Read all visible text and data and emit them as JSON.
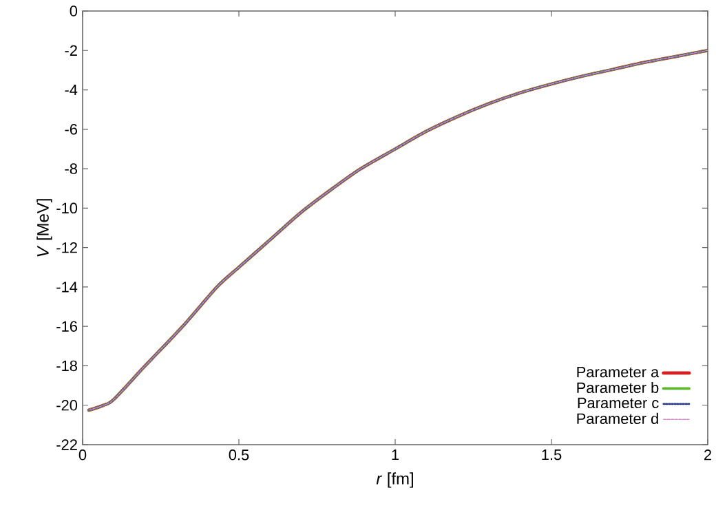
{
  "chart_data": {
    "type": "line",
    "xlabel": "*r* [fm]",
    "ylabel": "*V* [MeV]",
    "x": [
      0.02,
      0.067,
      0.1,
      0.2,
      0.32,
      0.43,
      0.5,
      0.6,
      0.7,
      0.8,
      0.89,
      1.0,
      1.1,
      1.2,
      1.3,
      1.4,
      1.5,
      1.6,
      1.7,
      1.8,
      1.9,
      2.0
    ],
    "series": [
      {
        "name": "Parameter a",
        "color": "#d42020",
        "line_style": "solid",
        "values": [
          -20.25,
          -20.0,
          -19.7,
          -18.0,
          -16.0,
          -14.0,
          -13.0,
          -11.6,
          -10.2,
          -9.0,
          -8.0,
          -7.0,
          -6.1,
          -5.35,
          -4.7,
          -4.15,
          -3.7,
          -3.3,
          -2.95,
          -2.6,
          -2.3,
          -2.0
        ]
      },
      {
        "name": "Parameter b",
        "color": "#5cb82e",
        "line_style": "dashed",
        "values": [
          -20.25,
          -20.0,
          -19.7,
          -18.0,
          -16.0,
          -14.0,
          -13.0,
          -11.6,
          -10.2,
          -9.0,
          -8.0,
          -7.0,
          -6.1,
          -5.35,
          -4.7,
          -4.15,
          -3.7,
          -3.3,
          -2.95,
          -2.6,
          -2.3,
          -2.0
        ]
      },
      {
        "name": "Parameter c",
        "color": "#2a3a8c",
        "line_style": "dotted",
        "values": [
          -20.25,
          -20.0,
          -19.7,
          -18.0,
          -16.0,
          -14.0,
          -13.0,
          -11.6,
          -10.2,
          -9.0,
          -8.0,
          -7.0,
          -6.1,
          -5.35,
          -4.7,
          -4.15,
          -3.7,
          -3.3,
          -2.95,
          -2.6,
          -2.3,
          -2.0
        ]
      },
      {
        "name": "Parameter d",
        "color": "#d88ccc",
        "line_style": "dashed",
        "values": [
          -20.25,
          -20.0,
          -19.7,
          -18.0,
          -16.0,
          -14.0,
          -13.0,
          -11.6,
          -10.2,
          -9.0,
          -8.0,
          -7.0,
          -6.1,
          -5.35,
          -4.7,
          -4.15,
          -3.7,
          -3.3,
          -2.95,
          -2.6,
          -2.3,
          -2.0
        ]
      }
    ],
    "xlim": [
      0,
      2
    ],
    "xticks": [
      0,
      0.5,
      1,
      1.5,
      2
    ],
    "ylim": [
      -22,
      0
    ],
    "yticks": [
      -22,
      -20,
      -18,
      -16,
      -14,
      -12,
      -10,
      -8,
      -6,
      -4,
      -2,
      0
    ],
    "legend": "bottom right",
    "grid": false,
    "marker": "none"
  }
}
